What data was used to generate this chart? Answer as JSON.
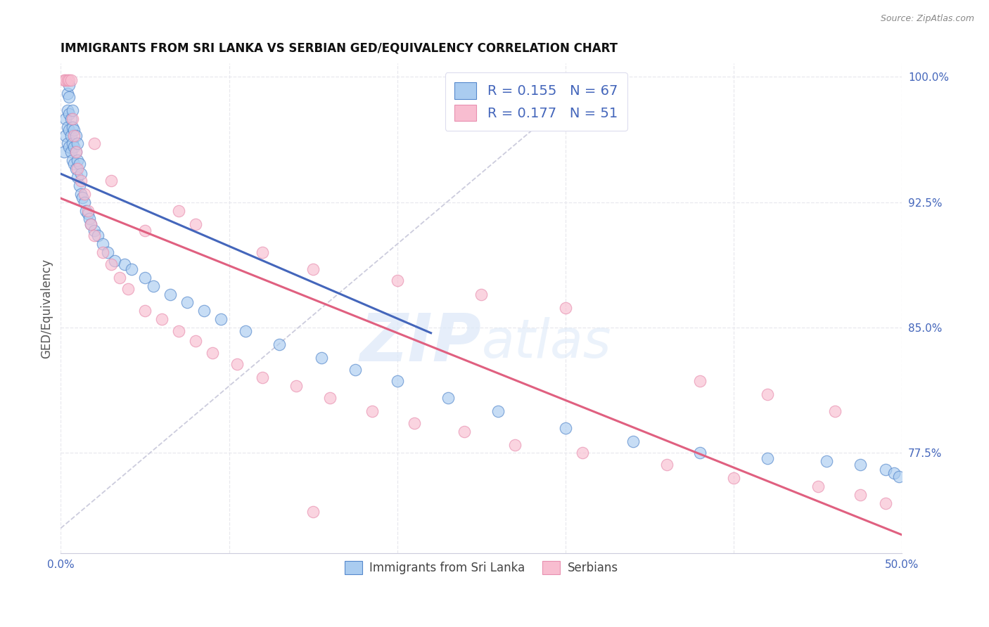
{
  "title": "IMMIGRANTS FROM SRI LANKA VS SERBIAN GED/EQUIVALENCY CORRELATION CHART",
  "source": "Source: ZipAtlas.com",
  "ylabel": "GED/Equivalency",
  "legend_label1": "Immigrants from Sri Lanka",
  "legend_label2": "Serbians",
  "r1": 0.155,
  "n1": 67,
  "r2": 0.177,
  "n2": 51,
  "xlim": [
    0.0,
    0.5
  ],
  "ylim": [
    0.715,
    1.008
  ],
  "ytick_labels_right": [
    "77.5%",
    "85.0%",
    "92.5%",
    "100.0%"
  ],
  "ytick_values_right": [
    0.775,
    0.85,
    0.925,
    1.0
  ],
  "color_blue_fill": "#AACCF0",
  "color_blue_edge": "#5588CC",
  "color_pink_fill": "#F8BDD0",
  "color_pink_edge": "#E890B0",
  "color_blue_line": "#4466BB",
  "color_pink_line": "#E06080",
  "color_ref_line": "#CCCCDD",
  "color_grid": "#E8E8EE",
  "watermark_color": "#DCE8F8",
  "blue_x": [
    0.002,
    0.003,
    0.003,
    0.004,
    0.004,
    0.004,
    0.004,
    0.005,
    0.005,
    0.005,
    0.005,
    0.005,
    0.006,
    0.006,
    0.006,
    0.007,
    0.007,
    0.007,
    0.007,
    0.008,
    0.008,
    0.008,
    0.009,
    0.009,
    0.009,
    0.01,
    0.01,
    0.01,
    0.011,
    0.011,
    0.012,
    0.012,
    0.013,
    0.014,
    0.015,
    0.016,
    0.017,
    0.018,
    0.02,
    0.022,
    0.025,
    0.028,
    0.032,
    0.038,
    0.042,
    0.05,
    0.055,
    0.065,
    0.075,
    0.085,
    0.095,
    0.11,
    0.13,
    0.155,
    0.175,
    0.2,
    0.23,
    0.26,
    0.3,
    0.34,
    0.38,
    0.42,
    0.455,
    0.475,
    0.49,
    0.495,
    0.498
  ],
  "blue_y": [
    0.955,
    0.965,
    0.975,
    0.96,
    0.97,
    0.98,
    0.99,
    0.958,
    0.968,
    0.978,
    0.988,
    0.995,
    0.955,
    0.965,
    0.975,
    0.95,
    0.96,
    0.97,
    0.98,
    0.948,
    0.958,
    0.968,
    0.945,
    0.955,
    0.965,
    0.94,
    0.95,
    0.96,
    0.935,
    0.948,
    0.93,
    0.942,
    0.928,
    0.925,
    0.92,
    0.918,
    0.915,
    0.912,
    0.908,
    0.905,
    0.9,
    0.895,
    0.89,
    0.888,
    0.885,
    0.88,
    0.875,
    0.87,
    0.865,
    0.86,
    0.855,
    0.848,
    0.84,
    0.832,
    0.825,
    0.818,
    0.808,
    0.8,
    0.79,
    0.782,
    0.775,
    0.772,
    0.77,
    0.768,
    0.765,
    0.763,
    0.761
  ],
  "pink_x": [
    0.002,
    0.003,
    0.004,
    0.005,
    0.006,
    0.007,
    0.008,
    0.009,
    0.01,
    0.012,
    0.014,
    0.016,
    0.018,
    0.02,
    0.025,
    0.03,
    0.035,
    0.04,
    0.05,
    0.06,
    0.07,
    0.08,
    0.09,
    0.105,
    0.12,
    0.14,
    0.16,
    0.185,
    0.21,
    0.24,
    0.27,
    0.31,
    0.36,
    0.4,
    0.45,
    0.475,
    0.49,
    0.05,
    0.07,
    0.08,
    0.12,
    0.15,
    0.2,
    0.25,
    0.3,
    0.38,
    0.42,
    0.46,
    0.03,
    0.02,
    0.15
  ],
  "pink_y": [
    0.998,
    0.998,
    0.998,
    0.998,
    0.998,
    0.975,
    0.965,
    0.955,
    0.945,
    0.938,
    0.93,
    0.92,
    0.912,
    0.905,
    0.895,
    0.888,
    0.88,
    0.873,
    0.86,
    0.855,
    0.848,
    0.842,
    0.835,
    0.828,
    0.82,
    0.815,
    0.808,
    0.8,
    0.793,
    0.788,
    0.78,
    0.775,
    0.768,
    0.76,
    0.755,
    0.75,
    0.745,
    0.908,
    0.92,
    0.912,
    0.895,
    0.885,
    0.878,
    0.87,
    0.862,
    0.818,
    0.81,
    0.8,
    0.938,
    0.96,
    0.74
  ],
  "ref_line_x": [
    0.0,
    0.32
  ],
  "ref_line_y": [
    0.73,
    1.002
  ]
}
